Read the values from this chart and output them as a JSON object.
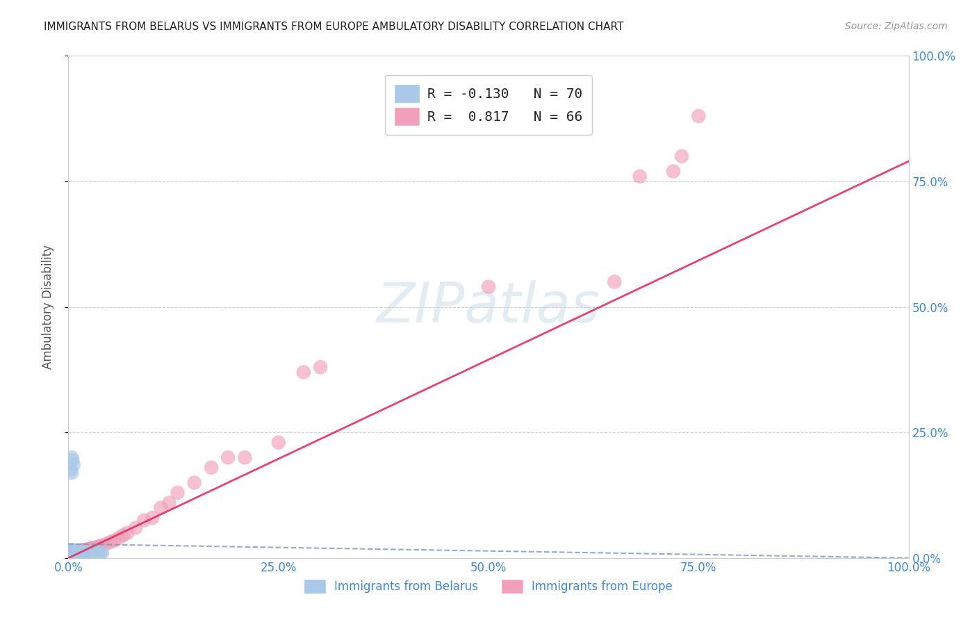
{
  "title": "IMMIGRANTS FROM BELARUS VS IMMIGRANTS FROM EUROPE AMBULATORY DISABILITY CORRELATION CHART",
  "source": "Source: ZipAtlas.com",
  "ylabel_left": "Ambulatory Disability",
  "watermark": "ZIPatlas",
  "legend_belarus_R": "-0.130",
  "legend_belarus_N": "70",
  "legend_europe_R": "0.817",
  "legend_europe_N": "66",
  "belarus_color": "#aac8e8",
  "europe_color": "#f0a0b8",
  "belarus_line_color": "#7090b8",
  "europe_line_color": "#e03060",
  "xlim": [
    0,
    1.0
  ],
  "ylim": [
    0,
    1.0
  ],
  "x_ticks": [
    0.0,
    0.25,
    0.5,
    0.75,
    1.0
  ],
  "x_tick_labels": [
    "0.0%",
    "25.0%",
    "50.0%",
    "75.0%",
    "100.0%"
  ],
  "y_ticks": [
    0.0,
    0.25,
    0.5,
    0.75,
    1.0
  ],
  "y_tick_labels": [
    "0.0%",
    "25.0%",
    "50.0%",
    "75.0%",
    "100.0%"
  ],
  "belarus_x": [
    0.001,
    0.002,
    0.002,
    0.003,
    0.003,
    0.003,
    0.004,
    0.004,
    0.005,
    0.005,
    0.005,
    0.006,
    0.006,
    0.006,
    0.007,
    0.007,
    0.007,
    0.007,
    0.008,
    0.008,
    0.008,
    0.009,
    0.009,
    0.009,
    0.01,
    0.01,
    0.01,
    0.01,
    0.011,
    0.011,
    0.011,
    0.012,
    0.012,
    0.013,
    0.013,
    0.014,
    0.014,
    0.015,
    0.015,
    0.016,
    0.016,
    0.017,
    0.017,
    0.018,
    0.018,
    0.019,
    0.02,
    0.02,
    0.021,
    0.022,
    0.022,
    0.023,
    0.024,
    0.025,
    0.026,
    0.027,
    0.028,
    0.03,
    0.032,
    0.034,
    0.036,
    0.038,
    0.04,
    0.004,
    0.005,
    0.006,
    0.003,
    0.004,
    0.006,
    0.007
  ],
  "belarus_y": [
    0.01,
    0.01,
    0.01,
    0.01,
    0.01,
    0.015,
    0.01,
    0.012,
    0.01,
    0.012,
    0.015,
    0.01,
    0.012,
    0.015,
    0.01,
    0.011,
    0.013,
    0.015,
    0.01,
    0.012,
    0.015,
    0.01,
    0.011,
    0.013,
    0.01,
    0.011,
    0.012,
    0.014,
    0.01,
    0.011,
    0.013,
    0.01,
    0.012,
    0.01,
    0.012,
    0.01,
    0.011,
    0.01,
    0.012,
    0.01,
    0.011,
    0.01,
    0.011,
    0.01,
    0.011,
    0.01,
    0.01,
    0.011,
    0.01,
    0.01,
    0.011,
    0.01,
    0.01,
    0.01,
    0.01,
    0.01,
    0.01,
    0.01,
    0.01,
    0.01,
    0.01,
    0.01,
    0.01,
    0.2,
    0.195,
    0.185,
    0.175,
    0.17,
    0.01,
    0.001
  ],
  "europe_x": [
    0.001,
    0.002,
    0.002,
    0.003,
    0.003,
    0.004,
    0.004,
    0.005,
    0.005,
    0.005,
    0.006,
    0.006,
    0.007,
    0.007,
    0.008,
    0.008,
    0.009,
    0.009,
    0.01,
    0.01,
    0.011,
    0.012,
    0.012,
    0.013,
    0.014,
    0.015,
    0.015,
    0.016,
    0.018,
    0.02,
    0.021,
    0.022,
    0.023,
    0.025,
    0.026,
    0.028,
    0.03,
    0.032,
    0.035,
    0.038,
    0.04,
    0.045,
    0.05,
    0.055,
    0.06,
    0.065,
    0.07,
    0.08,
    0.09,
    0.1,
    0.11,
    0.12,
    0.13,
    0.15,
    0.17,
    0.19,
    0.21,
    0.25,
    0.28,
    0.3,
    0.5,
    0.65,
    0.68,
    0.72,
    0.73,
    0.75
  ],
  "europe_y": [
    0.01,
    0.01,
    0.01,
    0.01,
    0.012,
    0.01,
    0.012,
    0.01,
    0.011,
    0.013,
    0.01,
    0.012,
    0.01,
    0.013,
    0.01,
    0.012,
    0.01,
    0.013,
    0.01,
    0.012,
    0.011,
    0.01,
    0.013,
    0.012,
    0.013,
    0.012,
    0.015,
    0.015,
    0.016,
    0.015,
    0.016,
    0.017,
    0.017,
    0.018,
    0.018,
    0.019,
    0.02,
    0.021,
    0.022,
    0.024,
    0.025,
    0.028,
    0.032,
    0.035,
    0.04,
    0.045,
    0.05,
    0.06,
    0.075,
    0.08,
    0.1,
    0.11,
    0.13,
    0.15,
    0.18,
    0.2,
    0.2,
    0.23,
    0.37,
    0.38,
    0.54,
    0.55,
    0.76,
    0.77,
    0.8,
    0.88
  ],
  "europe_line_x0": 0.0,
  "europe_line_y0": 0.0,
  "europe_line_x1": 1.0,
  "europe_line_y1": 0.79,
  "belarus_line_x0": 0.0,
  "belarus_line_y0": 0.028,
  "belarus_line_x1": 1.0,
  "belarus_line_y1": 0.0
}
